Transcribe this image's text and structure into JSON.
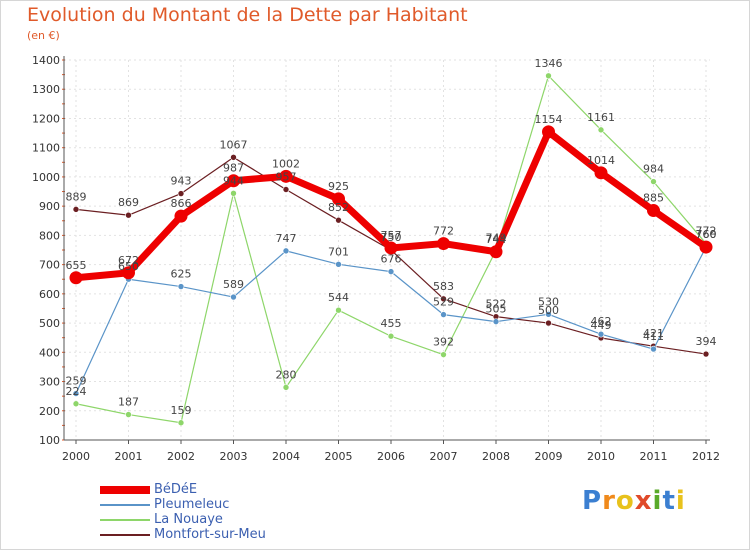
{
  "title": "Evolution du Montant de la Dette par Habitant",
  "unit": "(en €)",
  "brand": {
    "letters": [
      "P",
      "r",
      "o",
      "x",
      "i",
      "t",
      "i"
    ],
    "colors": [
      "#3b7fd1",
      "#f08a1c",
      "#e8c21c",
      "#e04a2a",
      "#5aaa2a",
      "#3b7fd1",
      "#e8c21c"
    ]
  },
  "chart_data": {
    "type": "line",
    "x": [
      "2000",
      "2001",
      "2002",
      "2003",
      "2004",
      "2005",
      "2006",
      "2007",
      "2008",
      "2009",
      "2010",
      "2011",
      "2012"
    ],
    "ylim": [
      100,
      1400
    ],
    "yticks": [
      100,
      200,
      300,
      400,
      500,
      600,
      700,
      800,
      900,
      1000,
      1100,
      1200,
      1300,
      1400
    ],
    "grid": true,
    "legend_position": "bottom-left",
    "series": [
      {
        "name": "Montfort-sur-Meu",
        "color": "#6b1f22",
        "width": 1.2,
        "values": [
          889,
          869,
          943,
          1067,
          957,
          852,
          750,
          583,
          522,
          500,
          449,
          421,
          394
        ]
      },
      {
        "name": "La Nouaye",
        "color": "#8ed66a",
        "width": 1.2,
        "values": [
          224,
          187,
          159,
          944,
          280,
          544,
          455,
          392,
          749,
          1346,
          1161,
          984,
          772
        ]
      },
      {
        "name": "Pleumeleuc",
        "color": "#5a94c8",
        "width": 1.2,
        "values": [
          259,
          650,
          625,
          589,
          747,
          701,
          676,
          529,
          505,
          530,
          462,
          411,
          760
        ]
      },
      {
        "name": "BéDéE",
        "color": "#ee0000",
        "width": 7,
        "values": [
          655,
          672,
          866,
          987,
          1002,
          925,
          757,
          772,
          744,
          1154,
          1014,
          885,
          760
        ]
      }
    ],
    "legend_order": [
      "BéDéE",
      "Pleumeleuc",
      "La Nouaye",
      "Montfort-sur-Meu"
    ]
  }
}
